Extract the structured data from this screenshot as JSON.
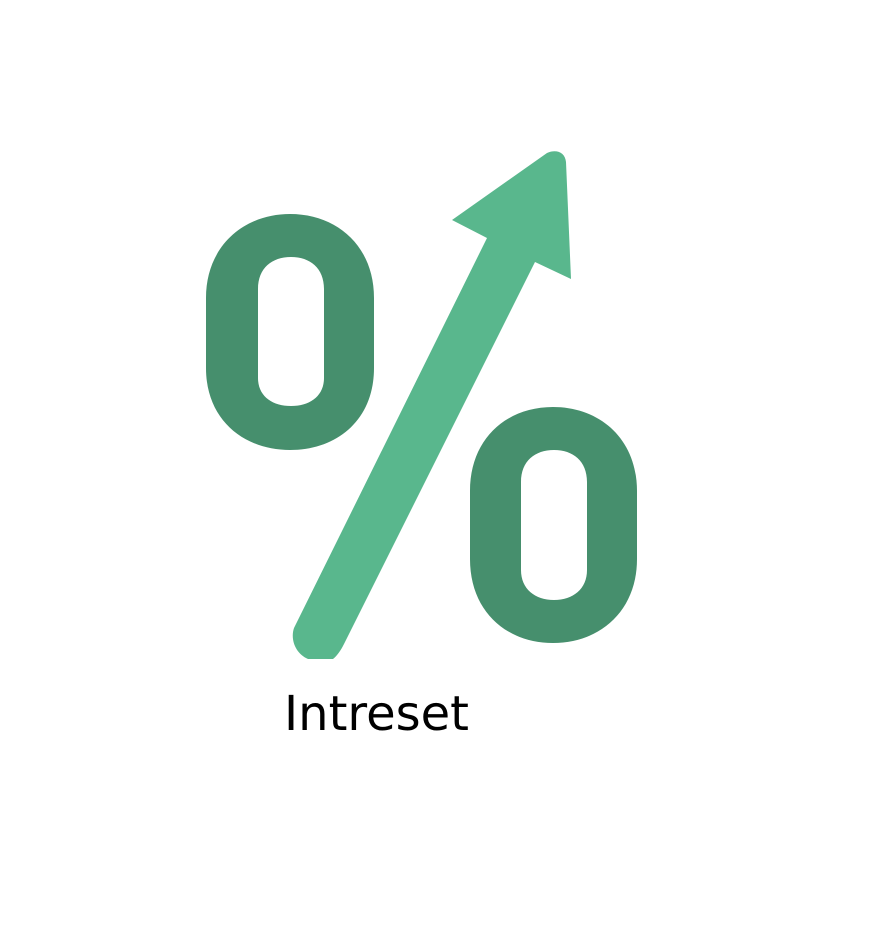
{
  "caption": {
    "text": "Intreset"
  },
  "graphic": {
    "icon": "percent-increase-icon",
    "colors": {
      "zero_fill": "#468F6D",
      "arrow_fill": "#59B78D",
      "background": "#FFFFFF",
      "text": "#000000"
    }
  }
}
